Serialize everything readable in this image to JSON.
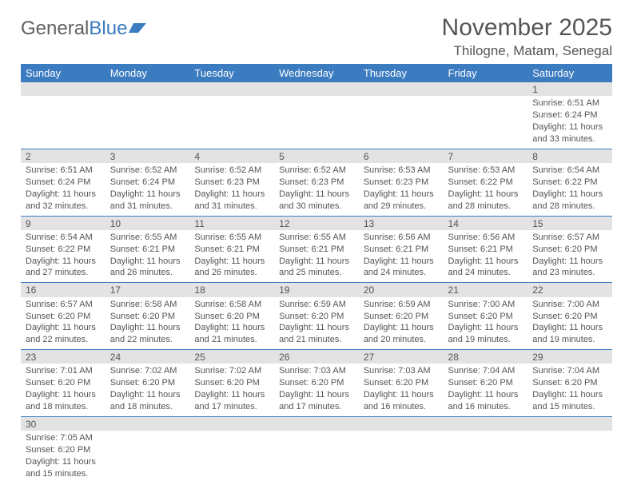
{
  "logo": {
    "text1": "General",
    "text2": "Blue"
  },
  "title": "November 2025",
  "location": "Thilogne, Matam, Senegal",
  "columns": [
    "Sunday",
    "Monday",
    "Tuesday",
    "Wednesday",
    "Thursday",
    "Friday",
    "Saturday"
  ],
  "colors": {
    "header_bg": "#3b7bbf",
    "header_fg": "#ffffff",
    "daynum_bg": "#e3e3e3",
    "row_divider": "#3b7bbf",
    "text": "#555555",
    "logo_gray": "#606060",
    "logo_blue": "#3b7bbf",
    "background": "#ffffff"
  },
  "typography": {
    "title_fontsize": 30,
    "location_fontsize": 17,
    "logo_fontsize": 24,
    "header_fontsize": 13,
    "daynum_fontsize": 12,
    "body_fontsize": 11
  },
  "layout": {
    "cols": 7,
    "rows": 6,
    "first_day_col": 6
  },
  "weeks": [
    [
      null,
      null,
      null,
      null,
      null,
      null,
      {
        "n": "1",
        "sr": "Sunrise: 6:51 AM",
        "ss": "Sunset: 6:24 PM",
        "d1": "Daylight: 11 hours",
        "d2": "and 33 minutes."
      }
    ],
    [
      {
        "n": "2",
        "sr": "Sunrise: 6:51 AM",
        "ss": "Sunset: 6:24 PM",
        "d1": "Daylight: 11 hours",
        "d2": "and 32 minutes."
      },
      {
        "n": "3",
        "sr": "Sunrise: 6:52 AM",
        "ss": "Sunset: 6:24 PM",
        "d1": "Daylight: 11 hours",
        "d2": "and 31 minutes."
      },
      {
        "n": "4",
        "sr": "Sunrise: 6:52 AM",
        "ss": "Sunset: 6:23 PM",
        "d1": "Daylight: 11 hours",
        "d2": "and 31 minutes."
      },
      {
        "n": "5",
        "sr": "Sunrise: 6:52 AM",
        "ss": "Sunset: 6:23 PM",
        "d1": "Daylight: 11 hours",
        "d2": "and 30 minutes."
      },
      {
        "n": "6",
        "sr": "Sunrise: 6:53 AM",
        "ss": "Sunset: 6:23 PM",
        "d1": "Daylight: 11 hours",
        "d2": "and 29 minutes."
      },
      {
        "n": "7",
        "sr": "Sunrise: 6:53 AM",
        "ss": "Sunset: 6:22 PM",
        "d1": "Daylight: 11 hours",
        "d2": "and 28 minutes."
      },
      {
        "n": "8",
        "sr": "Sunrise: 6:54 AM",
        "ss": "Sunset: 6:22 PM",
        "d1": "Daylight: 11 hours",
        "d2": "and 28 minutes."
      }
    ],
    [
      {
        "n": "9",
        "sr": "Sunrise: 6:54 AM",
        "ss": "Sunset: 6:22 PM",
        "d1": "Daylight: 11 hours",
        "d2": "and 27 minutes."
      },
      {
        "n": "10",
        "sr": "Sunrise: 6:55 AM",
        "ss": "Sunset: 6:21 PM",
        "d1": "Daylight: 11 hours",
        "d2": "and 26 minutes."
      },
      {
        "n": "11",
        "sr": "Sunrise: 6:55 AM",
        "ss": "Sunset: 6:21 PM",
        "d1": "Daylight: 11 hours",
        "d2": "and 26 minutes."
      },
      {
        "n": "12",
        "sr": "Sunrise: 6:55 AM",
        "ss": "Sunset: 6:21 PM",
        "d1": "Daylight: 11 hours",
        "d2": "and 25 minutes."
      },
      {
        "n": "13",
        "sr": "Sunrise: 6:56 AM",
        "ss": "Sunset: 6:21 PM",
        "d1": "Daylight: 11 hours",
        "d2": "and 24 minutes."
      },
      {
        "n": "14",
        "sr": "Sunrise: 6:56 AM",
        "ss": "Sunset: 6:21 PM",
        "d1": "Daylight: 11 hours",
        "d2": "and 24 minutes."
      },
      {
        "n": "15",
        "sr": "Sunrise: 6:57 AM",
        "ss": "Sunset: 6:20 PM",
        "d1": "Daylight: 11 hours",
        "d2": "and 23 minutes."
      }
    ],
    [
      {
        "n": "16",
        "sr": "Sunrise: 6:57 AM",
        "ss": "Sunset: 6:20 PM",
        "d1": "Daylight: 11 hours",
        "d2": "and 22 minutes."
      },
      {
        "n": "17",
        "sr": "Sunrise: 6:58 AM",
        "ss": "Sunset: 6:20 PM",
        "d1": "Daylight: 11 hours",
        "d2": "and 22 minutes."
      },
      {
        "n": "18",
        "sr": "Sunrise: 6:58 AM",
        "ss": "Sunset: 6:20 PM",
        "d1": "Daylight: 11 hours",
        "d2": "and 21 minutes."
      },
      {
        "n": "19",
        "sr": "Sunrise: 6:59 AM",
        "ss": "Sunset: 6:20 PM",
        "d1": "Daylight: 11 hours",
        "d2": "and 21 minutes."
      },
      {
        "n": "20",
        "sr": "Sunrise: 6:59 AM",
        "ss": "Sunset: 6:20 PM",
        "d1": "Daylight: 11 hours",
        "d2": "and 20 minutes."
      },
      {
        "n": "21",
        "sr": "Sunrise: 7:00 AM",
        "ss": "Sunset: 6:20 PM",
        "d1": "Daylight: 11 hours",
        "d2": "and 19 minutes."
      },
      {
        "n": "22",
        "sr": "Sunrise: 7:00 AM",
        "ss": "Sunset: 6:20 PM",
        "d1": "Daylight: 11 hours",
        "d2": "and 19 minutes."
      }
    ],
    [
      {
        "n": "23",
        "sr": "Sunrise: 7:01 AM",
        "ss": "Sunset: 6:20 PM",
        "d1": "Daylight: 11 hours",
        "d2": "and 18 minutes."
      },
      {
        "n": "24",
        "sr": "Sunrise: 7:02 AM",
        "ss": "Sunset: 6:20 PM",
        "d1": "Daylight: 11 hours",
        "d2": "and 18 minutes."
      },
      {
        "n": "25",
        "sr": "Sunrise: 7:02 AM",
        "ss": "Sunset: 6:20 PM",
        "d1": "Daylight: 11 hours",
        "d2": "and 17 minutes."
      },
      {
        "n": "26",
        "sr": "Sunrise: 7:03 AM",
        "ss": "Sunset: 6:20 PM",
        "d1": "Daylight: 11 hours",
        "d2": "and 17 minutes."
      },
      {
        "n": "27",
        "sr": "Sunrise: 7:03 AM",
        "ss": "Sunset: 6:20 PM",
        "d1": "Daylight: 11 hours",
        "d2": "and 16 minutes."
      },
      {
        "n": "28",
        "sr": "Sunrise: 7:04 AM",
        "ss": "Sunset: 6:20 PM",
        "d1": "Daylight: 11 hours",
        "d2": "and 16 minutes."
      },
      {
        "n": "29",
        "sr": "Sunrise: 7:04 AM",
        "ss": "Sunset: 6:20 PM",
        "d1": "Daylight: 11 hours",
        "d2": "and 15 minutes."
      }
    ],
    [
      {
        "n": "30",
        "sr": "Sunrise: 7:05 AM",
        "ss": "Sunset: 6:20 PM",
        "d1": "Daylight: 11 hours",
        "d2": "and 15 minutes."
      },
      null,
      null,
      null,
      null,
      null,
      null
    ]
  ]
}
